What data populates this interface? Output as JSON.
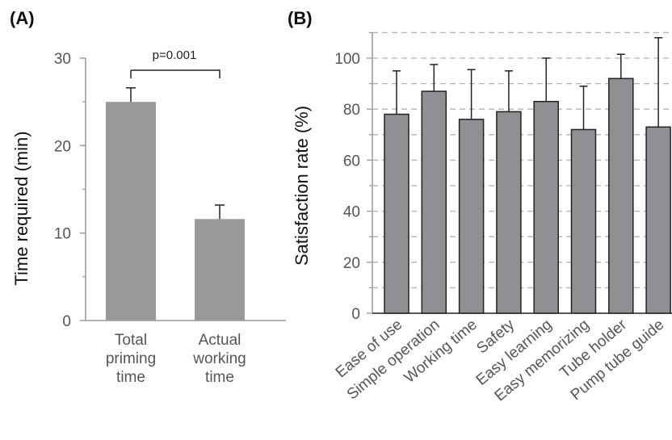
{
  "chart_data": [
    {
      "type": "bar",
      "panel_label": "(A)",
      "categories": [
        [
          "Total",
          "priming",
          "time"
        ],
        [
          "Actual",
          "working",
          "time"
        ]
      ],
      "values": [
        25.0,
        11.6
      ],
      "errors": [
        1.6,
        1.6
      ],
      "ylabel": "Time required (min)",
      "ylim": [
        0,
        30
      ],
      "yticks": [
        "0",
        "10",
        "20",
        "30"
      ],
      "annotation": "p=0.001",
      "bar_color": "#999999",
      "grid": false
    },
    {
      "type": "bar",
      "panel_label": "(B)",
      "categories": [
        "Ease of use",
        "Simple operation",
        "Working time",
        "Safety",
        "Easy learning",
        "Easy memorizing",
        "Tube holder",
        "Pump tube guide"
      ],
      "values": [
        78,
        87,
        76,
        79,
        83,
        72,
        92,
        73
      ],
      "errors": [
        17,
        10.5,
        19.5,
        16,
        17,
        17,
        9.5,
        35
      ],
      "ylabel": "Satisfaction rate (%)",
      "ylim": [
        0,
        110
      ],
      "yticks": [
        "0",
        "20",
        "40",
        "60",
        "80",
        "100"
      ],
      "bar_color": "#8f9093",
      "grid": true
    }
  ]
}
